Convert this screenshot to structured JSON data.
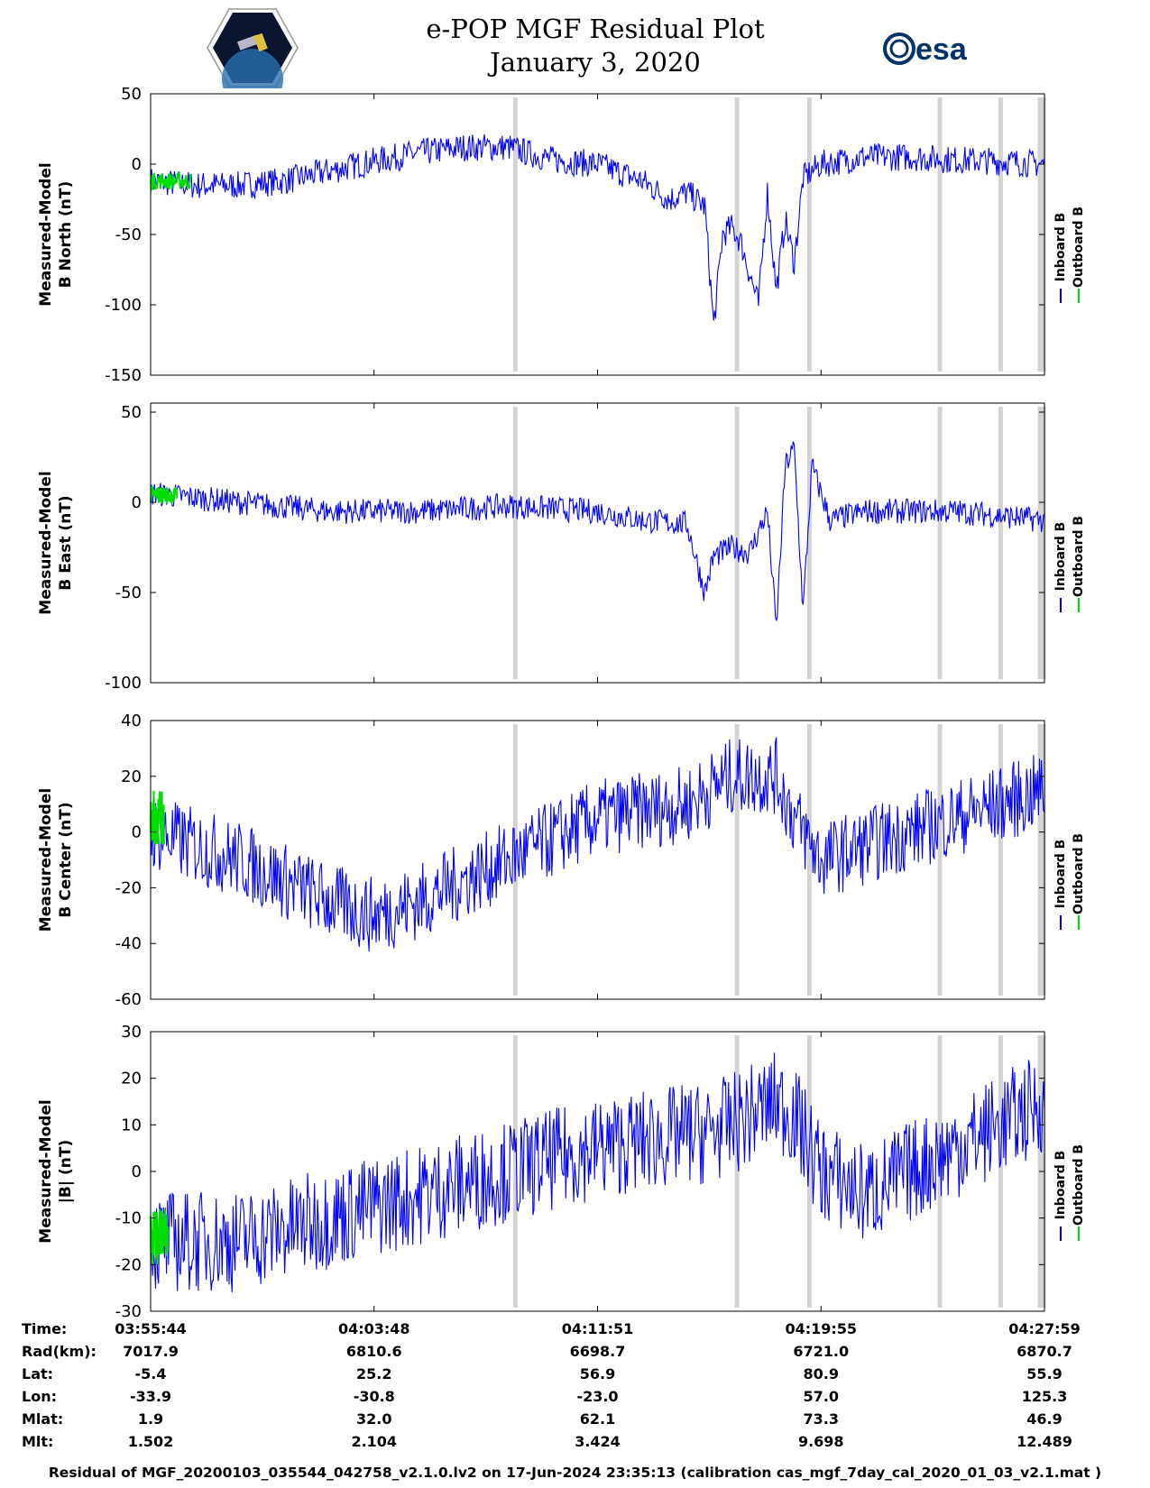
{
  "header": {
    "title": "e-POP MGF Residual Plot",
    "date": "January 3, 2020",
    "logo_left": "CASSIOPE",
    "logo_right": "esa"
  },
  "colors": {
    "inboard": "#0000ff",
    "outboard": "#00dd00",
    "gap": "#d3d3d3",
    "axis": "#000000"
  },
  "legend": {
    "inboard": "Inboard B",
    "outboard": "Outboard B"
  },
  "chart_data": [
    {
      "type": "line",
      "panel": "b-north",
      "ylabel_line1": "Measured-Model",
      "ylabel_line2": "B North (nT)",
      "ylim": [
        -150,
        50
      ],
      "yticks": [
        -150,
        -100,
        -50,
        0,
        50
      ],
      "series": [
        {
          "name": "Inboard B",
          "color": "#0000ff",
          "x": [
            0,
            0.05,
            0.1,
            0.15,
            0.2,
            0.25,
            0.3,
            0.35,
            0.4,
            0.45,
            0.5,
            0.55,
            0.58,
            0.6,
            0.62,
            0.63,
            0.64,
            0.65,
            0.66,
            0.68,
            0.69,
            0.7,
            0.71,
            0.72,
            0.73,
            0.75,
            0.8,
            0.85,
            0.9,
            0.95,
            1.0
          ],
          "y": [
            -12,
            -15,
            -15,
            -12,
            -5,
            2,
            8,
            12,
            12,
            3,
            0,
            -12,
            -25,
            -20,
            -30,
            -115,
            -50,
            -45,
            -55,
            -100,
            -20,
            -90,
            -40,
            -70,
            -10,
            0,
            5,
            5,
            3,
            2,
            0
          ],
          "noise": 10
        },
        {
          "name": "Outboard B",
          "color": "#00dd00",
          "x": [
            0,
            0.045
          ],
          "y": [
            -12,
            -12
          ],
          "noise": 6
        }
      ]
    },
    {
      "type": "line",
      "panel": "b-east",
      "ylabel_line1": "Measured-Model",
      "ylabel_line2": "B East (nT)",
      "ylim": [
        -100,
        55
      ],
      "yticks": [
        -100,
        -50,
        0,
        50
      ],
      "series": [
        {
          "name": "Inboard B",
          "color": "#0000ff",
          "x": [
            0,
            0.1,
            0.2,
            0.3,
            0.4,
            0.5,
            0.55,
            0.6,
            0.62,
            0.63,
            0.65,
            0.67,
            0.69,
            0.7,
            0.71,
            0.72,
            0.73,
            0.74,
            0.76,
            0.8,
            0.9,
            1.0
          ],
          "y": [
            5,
            0,
            -5,
            -5,
            -2,
            -5,
            -10,
            -12,
            -50,
            -30,
            -25,
            -28,
            -5,
            -70,
            20,
            30,
            -60,
            20,
            -10,
            -5,
            -5,
            -10
          ],
          "noise": 7
        },
        {
          "name": "Outboard B",
          "color": "#00dd00",
          "x": [
            0,
            0.03
          ],
          "y": [
            4,
            4
          ],
          "noise": 5
        }
      ]
    },
    {
      "type": "line",
      "panel": "b-center",
      "ylabel_line1": "Measured-Model",
      "ylabel_line2": "B Center (nT)",
      "ylim": [
        -60,
        40
      ],
      "yticks": [
        -60,
        -40,
        -20,
        0,
        20,
        40
      ],
      "series": [
        {
          "name": "Inboard B",
          "color": "#0000ff",
          "x": [
            0,
            0.1,
            0.2,
            0.25,
            0.3,
            0.4,
            0.5,
            0.6,
            0.65,
            0.7,
            0.72,
            0.75,
            0.8,
            0.9,
            1.0
          ],
          "y": [
            0,
            -10,
            -25,
            -30,
            -25,
            -10,
            5,
            10,
            20,
            20,
            5,
            -10,
            -5,
            5,
            15
          ],
          "noise": 14
        },
        {
          "name": "Outboard B",
          "color": "#00dd00",
          "x": [
            0,
            0.015
          ],
          "y": [
            5,
            5
          ],
          "noise": 10
        }
      ]
    },
    {
      "type": "line",
      "panel": "b-total",
      "ylabel_line1": "Measured-Model",
      "ylabel_line2": "|B| (nT)",
      "ylim": [
        -30,
        30
      ],
      "yticks": [
        -30,
        -20,
        -10,
        0,
        10,
        20,
        30
      ],
      "series": [
        {
          "name": "Inboard B",
          "color": "#0000ff",
          "x": [
            0,
            0.1,
            0.2,
            0.3,
            0.4,
            0.5,
            0.6,
            0.62,
            0.65,
            0.7,
            0.72,
            0.75,
            0.8,
            0.9,
            1.0
          ],
          "y": [
            -15,
            -15,
            -10,
            -5,
            0,
            5,
            8,
            8,
            10,
            15,
            12,
            0,
            -5,
            5,
            15
          ],
          "noise": 11
        },
        {
          "name": "Outboard B",
          "color": "#00dd00",
          "x": [
            0,
            0.02
          ],
          "y": [
            -14,
            -14
          ],
          "noise": 6
        }
      ]
    }
  ],
  "gaps": [
    0.408,
    0.656,
    0.737,
    0.883,
    0.951,
    0.995
  ],
  "x_ticks": [
    0.25,
    0.5,
    0.75
  ],
  "info_table": {
    "rows": [
      {
        "label": "Time:",
        "values": [
          "03:55:44",
          "04:03:48",
          "04:11:51",
          "04:19:55",
          "04:27:59"
        ]
      },
      {
        "label": "Rad(km):",
        "values": [
          "7017.9",
          "6810.6",
          "6698.7",
          "6721.0",
          "6870.7"
        ]
      },
      {
        "label": "Lat:",
        "values": [
          "-5.4",
          "25.2",
          "56.9",
          "80.9",
          "55.9"
        ]
      },
      {
        "label": "Lon:",
        "values": [
          "-33.9",
          "-30.8",
          "-23.0",
          "57.0",
          "125.3"
        ]
      },
      {
        "label": "Mlat:",
        "values": [
          "1.9",
          "32.0",
          "62.1",
          "73.3",
          "46.9"
        ]
      },
      {
        "label": "Mlt:",
        "values": [
          "1.502",
          "2.104",
          "3.424",
          "9.698",
          "12.489"
        ]
      }
    ]
  },
  "footer": "Residual of MGF_20200103_035544_042758_v2.1.0.lv2 on 17-Jun-2024 23:35:13 (calibration cas_mgf_7day_cal_2020_01_03_v2.1.mat )"
}
